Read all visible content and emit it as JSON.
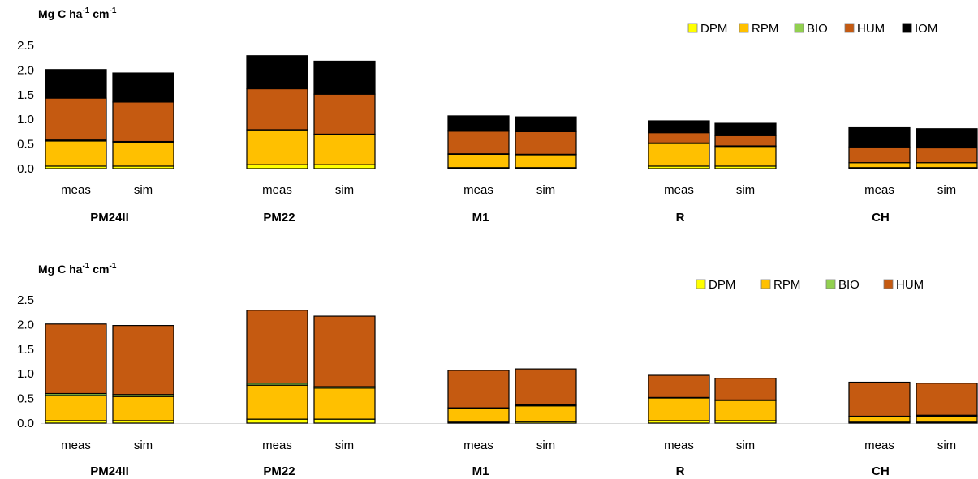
{
  "colors": {
    "DPM": "#ffff00",
    "RPM": "#ffc000",
    "BIO": "#92d050",
    "HUM": "#c55a11",
    "IOM": "#000000"
  },
  "chart_data": [
    {
      "type": "bar",
      "stacked": true,
      "title": "",
      "ylabel": "Mg C ha-1 cm-1",
      "ylim": [
        0,
        2.5
      ],
      "yticks": [
        "0.0",
        "0.5",
        "1.0",
        "1.5",
        "2.0",
        "2.5"
      ],
      "legend_position": "top-right",
      "groups": [
        "PM24II",
        "PM22",
        "M1",
        "R",
        "CH"
      ],
      "categories": [
        "meas",
        "sim"
      ],
      "series": [
        {
          "name": "DPM",
          "values": [
            [
              0.05,
              0.05
            ],
            [
              0.08,
              0.08
            ],
            [
              0.02,
              0.02
            ],
            [
              0.05,
              0.05
            ],
            [
              0.02,
              0.02
            ]
          ]
        },
        {
          "name": "RPM",
          "values": [
            [
              0.51,
              0.48
            ],
            [
              0.69,
              0.61
            ],
            [
              0.27,
              0.26
            ],
            [
              0.46,
              0.4
            ],
            [
              0.1,
              0.1
            ]
          ]
        },
        {
          "name": "BIO",
          "values": [
            [
              0.02,
              0.02
            ],
            [
              0.02,
              0.01
            ],
            [
              0.01,
              0.01
            ],
            [
              0.01,
              0.01
            ],
            [
              0.0,
              0.0
            ]
          ]
        },
        {
          "name": "HUM",
          "values": [
            [
              0.85,
              0.8
            ],
            [
              0.83,
              0.81
            ],
            [
              0.46,
              0.46
            ],
            [
              0.21,
              0.21
            ],
            [
              0.32,
              0.3
            ]
          ]
        },
        {
          "name": "IOM",
          "values": [
            [
              0.58,
              0.59
            ],
            [
              0.67,
              0.67
            ],
            [
              0.31,
              0.3
            ],
            [
              0.24,
              0.25
            ],
            [
              0.39,
              0.39
            ]
          ]
        }
      ]
    },
    {
      "type": "bar",
      "stacked": true,
      "title": "",
      "ylabel": "Mg C ha-1 cm-1",
      "ylim": [
        0,
        2.5
      ],
      "yticks": [
        "0.0",
        "0.5",
        "1.0",
        "1.5",
        "2.0",
        "2.5"
      ],
      "legend_position": "top-right",
      "groups": [
        "PM24II",
        "PM22",
        "M1",
        "R",
        "CH"
      ],
      "categories": [
        "meas",
        "sim"
      ],
      "series": [
        {
          "name": "DPM",
          "values": [
            [
              0.05,
              0.05
            ],
            [
              0.08,
              0.08
            ],
            [
              0.02,
              0.03
            ],
            [
              0.05,
              0.05
            ],
            [
              0.02,
              0.02
            ]
          ]
        },
        {
          "name": "RPM",
          "values": [
            [
              0.51,
              0.49
            ],
            [
              0.69,
              0.63
            ],
            [
              0.27,
              0.32
            ],
            [
              0.46,
              0.41
            ],
            [
              0.11,
              0.12
            ]
          ]
        },
        {
          "name": "BIO",
          "values": [
            [
              0.04,
              0.04
            ],
            [
              0.04,
              0.03
            ],
            [
              0.02,
              0.02
            ],
            [
              0.01,
              0.01
            ],
            [
              0.01,
              0.02
            ]
          ]
        },
        {
          "name": "HUM",
          "values": [
            [
              1.41,
              1.4
            ],
            [
              1.48,
              1.43
            ],
            [
              0.76,
              0.73
            ],
            [
              0.45,
              0.44
            ],
            [
              0.69,
              0.65
            ]
          ]
        }
      ]
    }
  ]
}
